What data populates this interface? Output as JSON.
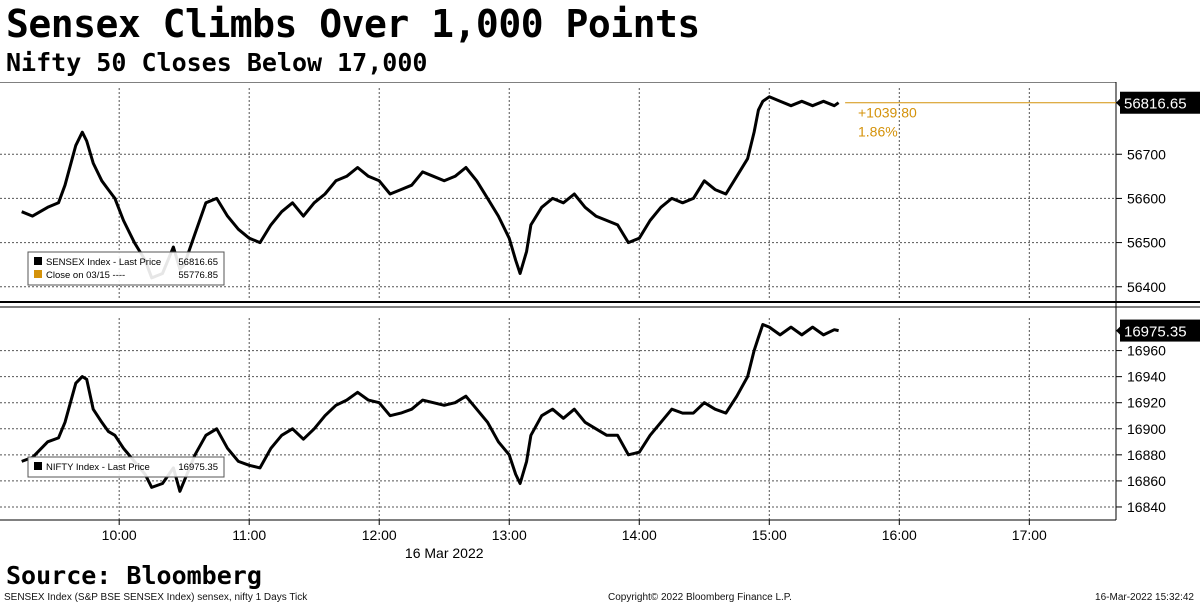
{
  "title": "Sensex Climbs Over 1,000 Points",
  "subtitle": "Nifty 50 Closes Below 17,000",
  "source": "Source: Bloomberg",
  "footer": {
    "left": "SENSEX Index (S&P BSE SENSEX Index) sensex, nifty 1 Days  Tick",
    "center": "Copyright© 2022 Bloomberg Finance L.P.",
    "right": "16-Mar-2022 15:32:42"
  },
  "colors": {
    "line": "#000000",
    "accent": "#d4920a",
    "grid": "#555555"
  },
  "chart_data": [
    {
      "type": "line",
      "name": "SENSEX",
      "x_ticks": [
        "10:00",
        "11:00",
        "12:00",
        "13:00",
        "14:00",
        "15:00",
        "16:00",
        "17:00"
      ],
      "x_date_label": "16 Mar 2022",
      "y_ticks": [
        56400,
        56500,
        56600,
        56700
      ],
      "ylim": [
        56370,
        56850
      ],
      "grid": true,
      "last_price": "56816.65",
      "change": "+1039.80",
      "change_pct": "1.86%",
      "legend": [
        {
          "label": "SENSEX Index - Last Price",
          "value": "56816.65",
          "marker": "black"
        },
        {
          "label": "Close on 03/15 ----",
          "value": "55776.85",
          "marker": "orange"
        }
      ],
      "series": [
        {
          "x": [
            "09:15",
            "09:20",
            "09:27",
            "09:32",
            "09:35",
            "09:40",
            "09:43",
            "09:45",
            "09:48",
            "09:52",
            "09:55",
            "09:58",
            "10:02",
            "10:07",
            "10:12",
            "10:15",
            "10:20",
            "10:25",
            "10:28",
            "10:30",
            "10:35",
            "10:40",
            "10:45",
            "10:50",
            "10:55",
            "11:00",
            "11:05",
            "11:10",
            "11:15",
            "11:20",
            "11:25",
            "11:30",
            "11:35",
            "11:40",
            "11:45",
            "11:50",
            "11:55",
            "12:00",
            "12:05",
            "12:10",
            "12:15",
            "12:20",
            "12:25",
            "12:30",
            "12:35",
            "12:40",
            "12:45",
            "12:50",
            "12:55",
            "13:00",
            "13:03",
            "13:05",
            "13:08",
            "13:10",
            "13:15",
            "13:20",
            "13:25",
            "13:30",
            "13:35",
            "13:40",
            "13:45",
            "13:50",
            "13:55",
            "14:00",
            "14:05",
            "14:10",
            "14:15",
            "14:20",
            "14:25",
            "14:30",
            "14:35",
            "14:40",
            "14:45",
            "14:50",
            "14:53",
            "14:55",
            "14:57",
            "15:00",
            "15:05",
            "15:10",
            "15:15",
            "15:20",
            "15:25",
            "15:30",
            "15:32"
          ],
          "y": [
            56570,
            56560,
            56580,
            56590,
            56630,
            56720,
            56750,
            56730,
            56680,
            56640,
            56620,
            56600,
            56550,
            56500,
            56460,
            56420,
            56430,
            56490,
            56440,
            56450,
            56520,
            56590,
            56600,
            56560,
            56530,
            56510,
            56500,
            56540,
            56570,
            56590,
            56560,
            56590,
            56610,
            56640,
            56650,
            56670,
            56650,
            56640,
            56610,
            56620,
            56630,
            56660,
            56650,
            56640,
            56650,
            56670,
            56640,
            56600,
            56560,
            56510,
            56460,
            56430,
            56480,
            56540,
            56580,
            56600,
            56590,
            56610,
            56580,
            56560,
            56550,
            56540,
            56500,
            56510,
            56550,
            56580,
            56600,
            56590,
            56600,
            56640,
            56620,
            56610,
            56650,
            56690,
            56750,
            56800,
            56820,
            56830,
            56820,
            56810,
            56820,
            56810,
            56820,
            56810,
            56816.65
          ]
        }
      ]
    },
    {
      "type": "line",
      "name": "NIFTY",
      "x_ticks": [
        "10:00",
        "11:00",
        "12:00",
        "13:00",
        "14:00",
        "15:00",
        "16:00",
        "17:00"
      ],
      "x_date_label": "16 Mar 2022",
      "y_ticks": [
        16840,
        16860,
        16880,
        16900,
        16920,
        16940,
        16960
      ],
      "ylim": [
        16830,
        16985
      ],
      "grid": true,
      "last_price": "16975.35",
      "legend": [
        {
          "label": "NIFTY Index - Last Price",
          "value": "16975.35",
          "marker": "black"
        }
      ],
      "series": [
        {
          "x": [
            "09:15",
            "09:20",
            "09:27",
            "09:32",
            "09:35",
            "09:40",
            "09:43",
            "09:45",
            "09:48",
            "09:52",
            "09:55",
            "09:58",
            "10:02",
            "10:07",
            "10:12",
            "10:15",
            "10:20",
            "10:25",
            "10:28",
            "10:30",
            "10:35",
            "10:40",
            "10:45",
            "10:50",
            "10:55",
            "11:00",
            "11:05",
            "11:10",
            "11:15",
            "11:20",
            "11:25",
            "11:30",
            "11:35",
            "11:40",
            "11:45",
            "11:50",
            "11:55",
            "12:00",
            "12:05",
            "12:10",
            "12:15",
            "12:20",
            "12:25",
            "12:30",
            "12:35",
            "12:40",
            "12:45",
            "12:50",
            "12:55",
            "13:00",
            "13:03",
            "13:05",
            "13:08",
            "13:10",
            "13:15",
            "13:20",
            "13:25",
            "13:30",
            "13:35",
            "13:40",
            "13:45",
            "13:50",
            "13:55",
            "14:00",
            "14:05",
            "14:10",
            "14:15",
            "14:20",
            "14:25",
            "14:30",
            "14:35",
            "14:40",
            "14:45",
            "14:50",
            "14:53",
            "14:55",
            "14:57",
            "15:00",
            "15:05",
            "15:10",
            "15:15",
            "15:20",
            "15:25",
            "15:30",
            "15:32"
          ],
          "y": [
            16875,
            16878,
            16890,
            16893,
            16905,
            16935,
            16940,
            16938,
            16915,
            16905,
            16898,
            16895,
            16885,
            16875,
            16865,
            16855,
            16858,
            16870,
            16852,
            16860,
            16880,
            16895,
            16900,
            16885,
            16875,
            16872,
            16870,
            16885,
            16895,
            16900,
            16892,
            16900,
            16910,
            16918,
            16922,
            16928,
            16922,
            16920,
            16910,
            16912,
            16915,
            16922,
            16920,
            16918,
            16920,
            16925,
            16915,
            16905,
            16890,
            16880,
            16865,
            16858,
            16875,
            16895,
            16910,
            16915,
            16908,
            16915,
            16905,
            16900,
            16895,
            16895,
            16880,
            16882,
            16895,
            16905,
            16915,
            16912,
            16912,
            16920,
            16915,
            16912,
            16925,
            16940,
            16960,
            16970,
            16980,
            16978,
            16972,
            16978,
            16972,
            16978,
            16972,
            16976,
            16975.35
          ]
        }
      ]
    }
  ]
}
